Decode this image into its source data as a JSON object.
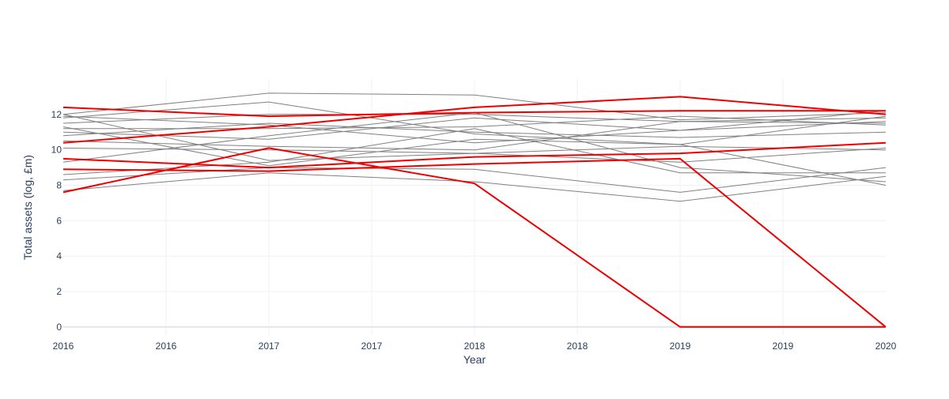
{
  "chart_data": {
    "type": "line",
    "title": "",
    "xlabel": "Year",
    "ylabel": "Total assets (log, £m)",
    "xlim": [
      2016,
      2020
    ],
    "ylim": [
      -0.5,
      14
    ],
    "grid": true,
    "legend": "none",
    "x_ticks": [
      {
        "value": 2016.0,
        "label": "2016"
      },
      {
        "value": 2016.5,
        "label": "2016"
      },
      {
        "value": 2017.0,
        "label": "2017"
      },
      {
        "value": 2017.5,
        "label": "2017"
      },
      {
        "value": 2018.0,
        "label": "2018"
      },
      {
        "value": 2018.5,
        "label": "2018"
      },
      {
        "value": 2019.0,
        "label": "2019"
      },
      {
        "value": 2019.5,
        "label": "2019"
      },
      {
        "value": 2020.0,
        "label": "2020"
      }
    ],
    "y_ticks": [
      0,
      2,
      4,
      6,
      8,
      10,
      12
    ],
    "x": [
      2016,
      2017,
      2018,
      2019,
      2020
    ],
    "colors": {
      "highlight": "#ee0000",
      "background": "#808080",
      "grid": "#eef1f5",
      "zeroline": "#e2e6ea"
    },
    "series": [
      {
        "values": [
          12.0,
          13.2,
          13.1,
          11.7,
          12.1
        ],
        "highlight": false
      },
      {
        "values": [
          11.8,
          12.7,
          10.9,
          10.3,
          11.9
        ],
        "highlight": false
      },
      {
        "values": [
          11.5,
          12.0,
          12.0,
          11.6,
          11.8
        ],
        "highlight": false
      },
      {
        "values": [
          11.2,
          11.2,
          11.3,
          11.9,
          11.4
        ],
        "highlight": false
      },
      {
        "values": [
          11.0,
          10.6,
          11.8,
          11.1,
          11.6
        ],
        "highlight": false
      },
      {
        "values": [
          10.8,
          11.5,
          11.0,
          10.7,
          11.0
        ],
        "highlight": false
      },
      {
        "values": [
          11.9,
          11.4,
          10.4,
          11.1,
          12.2
        ],
        "highlight": false
      },
      {
        "values": [
          10.5,
          10.2,
          10.0,
          11.6,
          11.5
        ],
        "highlight": false
      },
      {
        "values": [
          10.1,
          10.0,
          9.8,
          10.2,
          10.0
        ],
        "highlight": false
      },
      {
        "values": [
          9.3,
          10.8,
          12.1,
          9.0,
          8.2
        ],
        "highlight": false
      },
      {
        "values": [
          8.6,
          9.3,
          11.2,
          8.7,
          8.7
        ],
        "highlight": false
      },
      {
        "values": [
          8.3,
          9.0,
          8.9,
          7.6,
          9.0
        ],
        "highlight": false
      },
      {
        "values": [
          7.7,
          8.7,
          8.2,
          7.1,
          8.5
        ],
        "highlight": false
      },
      {
        "values": [
          12.0,
          9.4,
          9.8,
          9.3,
          10.1
        ],
        "highlight": false
      },
      {
        "values": [
          11.3,
          9.1,
          10.6,
          10.3,
          8.0
        ],
        "highlight": false
      },
      {
        "values": [
          12.4,
          11.9,
          12.1,
          12.2,
          12.2
        ],
        "highlight": true
      },
      {
        "values": [
          10.4,
          11.3,
          12.4,
          13.0,
          12.0
        ],
        "highlight": true
      },
      {
        "values": [
          9.5,
          9.0,
          9.6,
          9.8,
          10.4
        ],
        "highlight": true
      },
      {
        "values": [
          8.9,
          8.8,
          9.2,
          9.5,
          0.0
        ],
        "highlight": true
      },
      {
        "values": [
          7.6,
          10.1,
          8.1,
          0.0,
          0.0
        ],
        "highlight": true
      }
    ]
  }
}
